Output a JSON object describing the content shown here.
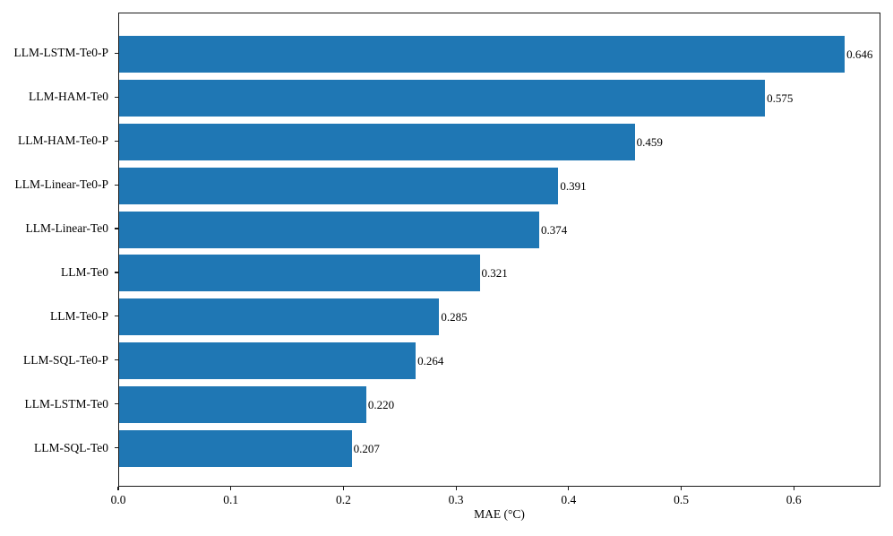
{
  "chart_data": {
    "type": "bar",
    "orientation": "horizontal",
    "title": "",
    "xlabel": "MAE (°C)",
    "ylabel": "",
    "categories": [
      "LLM-LSTM-Te0-P",
      "LLM-HAM-Te0",
      "LLM-HAM-Te0-P",
      "LLM-Linear-Te0-P",
      "LLM-Linear-Te0",
      "LLM-Te0",
      "LLM-Te0-P",
      "LLM-SQL-Te0-P",
      "LLM-LSTM-Te0",
      "LLM-SQL-Te0"
    ],
    "values": [
      0.646,
      0.575,
      0.459,
      0.391,
      0.374,
      0.321,
      0.285,
      0.264,
      0.22,
      0.207
    ],
    "value_labels": [
      "0.646",
      "0.575",
      "0.459",
      "0.391",
      "0.374",
      "0.321",
      "0.285",
      "0.264",
      "0.220",
      "0.207"
    ],
    "xlim": [
      0,
      0.677
    ],
    "xticks": [
      "0.0",
      "0.1",
      "0.2",
      "0.3",
      "0.4",
      "0.5",
      "0.6"
    ],
    "xtick_values": [
      0.0,
      0.1,
      0.2,
      0.3,
      0.4,
      0.5,
      0.6
    ],
    "bar_color": "#1f77b4",
    "grid": false,
    "legend": "none",
    "spines": "box"
  }
}
